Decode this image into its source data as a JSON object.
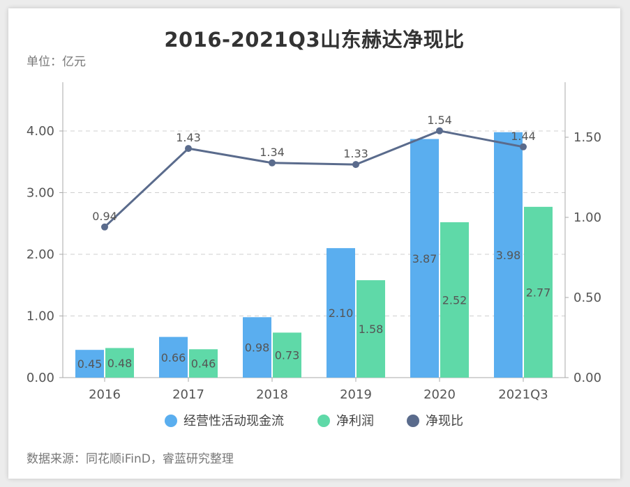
{
  "title": "2016-2021Q3山东赫达净现比",
  "unit_label": "单位：亿元",
  "source_label": "数据来源：同花顺iFinD，睿蓝研究整理",
  "chart_data": {
    "type": "bar",
    "title": "2016-2021Q3山东赫达净现比",
    "categories": [
      "2016",
      "2017",
      "2018",
      "2019",
      "2020",
      "2021Q3"
    ],
    "series": [
      {
        "name": "经营性活动现金流",
        "type": "bar",
        "axis": "left",
        "color": "#5aaeef",
        "values": [
          0.45,
          0.66,
          0.98,
          2.1,
          3.87,
          3.98
        ]
      },
      {
        "name": "净利润",
        "type": "bar",
        "axis": "left",
        "color": "#5fd9a8",
        "values": [
          0.48,
          0.46,
          0.73,
          1.58,
          2.52,
          2.77
        ]
      },
      {
        "name": "净现比",
        "type": "line",
        "axis": "right",
        "color": "#5a6b8c",
        "values": [
          0.94,
          1.43,
          1.34,
          1.33,
          1.54,
          1.44
        ]
      }
    ],
    "left_axis": {
      "ticks": [
        "0.00",
        "1.00",
        "2.00",
        "3.00",
        "4.00"
      ],
      "min": 0,
      "max": 4
    },
    "right_axis": {
      "ticks": [
        "0.00",
        "0.50",
        "1.00",
        "1.50"
      ],
      "min": 0,
      "max": 1.5
    },
    "grid": "dashed horizontal",
    "legend_position": "bottom"
  }
}
